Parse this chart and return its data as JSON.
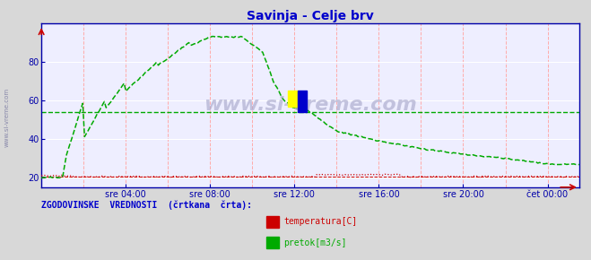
{
  "title": "Savinja - Celje brv",
  "title_color": "#0000cc",
  "bg_color": "#d8d8d8",
  "plot_bg_color": "#eeeeff",
  "grid_color_v": "#ffaaaa",
  "grid_color_h": "#ffffff",
  "x_tick_labels": [
    "sre 04:00",
    "sre 08:00",
    "sre 12:00",
    "sre 16:00",
    "sre 20:00",
    "čet 00:00"
  ],
  "x_tick_positions": [
    4,
    8,
    12,
    16,
    20,
    24
  ],
  "ylim": [
    15,
    100
  ],
  "xlim": [
    0,
    25.5
  ],
  "yticks": [
    20,
    40,
    60,
    80
  ],
  "bottom_label": "ZGODOVINSKE  VREDNOSTI  (črtkana  črta):",
  "bottom_label_color": "#0000cc",
  "legend_items": [
    {
      "label": "temperatura[C]",
      "color": "#cc0000"
    },
    {
      "label": "pretok[m3/s]",
      "color": "#00aa00"
    }
  ],
  "watermark": "www.si-vreme.com",
  "watermark_color": "#aaaacc",
  "side_label": "www.si-vreme.com",
  "hist_flow_y": 54,
  "hist_temp_y": 20.5
}
